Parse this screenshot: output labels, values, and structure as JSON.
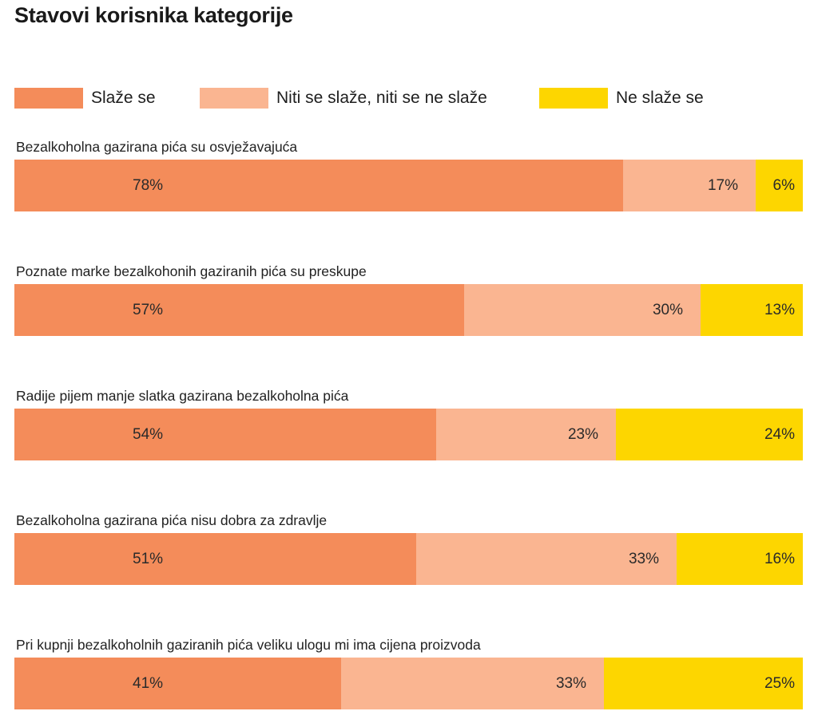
{
  "title": "Stavovi korisnika kategorije",
  "colors": {
    "agree": "#F48C5A",
    "neutral": "#FAB591",
    "disagree": "#FDD600"
  },
  "legend": [
    {
      "label": "Slaže se",
      "color": "#F48C5A"
    },
    {
      "label": "Niti se slaže, niti se ne slaže",
      "color": "#FAB591"
    },
    {
      "label": "Ne slaže se",
      "color": "#FDD600"
    }
  ],
  "chart_data": {
    "type": "bar",
    "orientation": "horizontal",
    "stacked": true,
    "title": "Stavovi korisnika kategorije",
    "legend_position": "top",
    "grid": false,
    "categories": [
      "Bezalkoholna gazirana pića su osvježavajuća",
      "Poznate marke bezalkohonih gaziranih pića su preskupe",
      "Radije pijem manje slatka gazirana bezalkoholna pića",
      "Bezalkoholna gazirana pića nisu dobra za zdravlje",
      "Pri kupnji bezalkoholnih gaziranih pića veliku ulogu mi ima cijena proizvoda"
    ],
    "series": [
      {
        "name": "Slaže se",
        "values": [
          78,
          57,
          54,
          51,
          41
        ],
        "labels": [
          "78%",
          "57%",
          "54%",
          "51%",
          "41%"
        ]
      },
      {
        "name": "Niti se slaže, niti se ne slaže",
        "values": [
          17,
          30,
          23,
          33,
          33
        ],
        "labels": [
          "17%",
          "30%",
          "23%",
          "33%",
          "33%"
        ]
      },
      {
        "name": "Ne slaže se",
        "values": [
          6,
          13,
          24,
          16,
          25
        ],
        "labels": [
          "6%",
          "13%",
          "24%",
          "16%",
          "25%"
        ]
      }
    ]
  }
}
